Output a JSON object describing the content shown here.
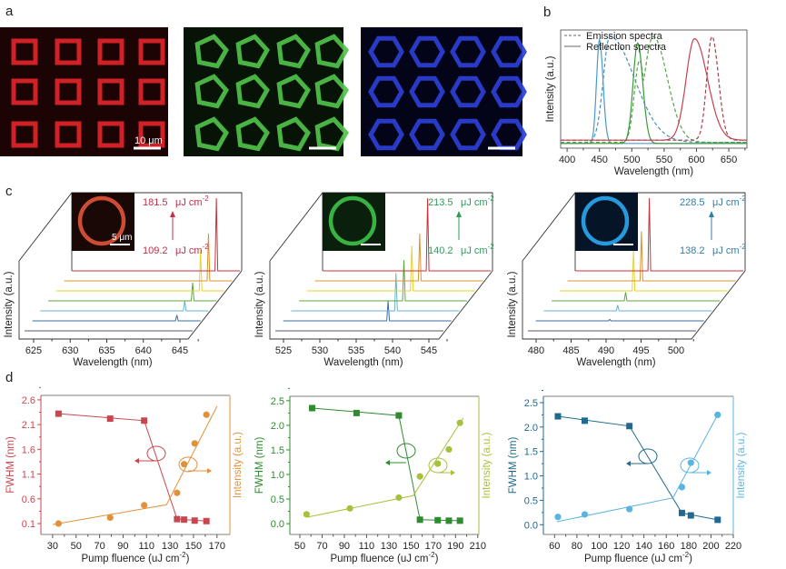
{
  "panel_labels": {
    "a": "a",
    "b": "b",
    "c": "c",
    "d": "d"
  },
  "panel_a": {
    "images": [
      {
        "name": "red-square-microring-array",
        "color": "#e0242a",
        "bg": "#1c0404",
        "shape": "square"
      },
      {
        "name": "green-pentagon-microring-array",
        "color": "#4fc24a",
        "bg": "#061306",
        "shape": "pentagon"
      },
      {
        "name": "blue-hexagon-microring-array",
        "color": "#2b3fd6",
        "bg": "#040418",
        "shape": "hexagon"
      }
    ],
    "scale_bar_label": "10 μm"
  },
  "chart_data": [
    {
      "id": "b",
      "type": "line",
      "title": "",
      "xlabel": "Wavelength (nm)",
      "ylabel": "Intensity (a.u.)",
      "xlim": [
        390,
        678
      ],
      "xticks": [
        400,
        450,
        500,
        550,
        600,
        650
      ],
      "legend": {
        "placement": "top-left",
        "entries": [
          {
            "label": "Emission spectra",
            "style": "dashed"
          },
          {
            "label": "Reflection spectra",
            "style": "solid"
          }
        ]
      },
      "series": [
        {
          "name": "blue emission",
          "style": "dashed",
          "color": "#4a8fb5",
          "peak_nm": 466,
          "sigma_left": 10,
          "sigma_right": 38,
          "height": 0.97,
          "baseline": 0.02
        },
        {
          "name": "blue reflection",
          "style": "solid",
          "color": "#4a9bc8",
          "peak_nm": 450,
          "sigma_left": 4.5,
          "sigma_right": 5.5,
          "height": 0.95,
          "baseline": 0.01
        },
        {
          "name": "green emission",
          "style": "dashed",
          "color": "#5aa34a",
          "peak_nm": 533,
          "sigma_left": 14,
          "sigma_right": 22,
          "height": 0.97,
          "shoulder_nm": 512,
          "shoulder_height": 0.75,
          "baseline": 0.02
        },
        {
          "name": "green reflection",
          "style": "solid",
          "color": "#3a9a3a",
          "peak_nm": 509,
          "sigma_left": 7,
          "sigma_right": 8,
          "height": 0.92,
          "baseline": 0.01
        },
        {
          "name": "red emission",
          "style": "dashed",
          "color": "#a8404a",
          "peak_nm": 624,
          "sigma_left": 8,
          "sigma_right": 10,
          "height": 0.95,
          "baseline": 0.04
        },
        {
          "name": "red reflection",
          "style": "solid",
          "color": "#c84050",
          "peak_nm": 597,
          "sigma_left": 13,
          "sigma_right": 20,
          "height": 0.93,
          "baseline": 0.04
        }
      ]
    },
    {
      "id": "c1",
      "type": "line",
      "subtype": "waterfall",
      "xlabel": "Wavelength (nm)",
      "ylabel": "Intensity (a.u.)",
      "xticks": [
        625,
        630,
        635,
        640,
        645
      ],
      "x_start": 625,
      "px_per_nm": 8.05,
      "peak_nm": 643.5,
      "peak_heights": [
        0,
        0.08,
        0.14,
        0.25,
        0.56,
        0.65,
        1.0
      ],
      "fluence_high": "181.5",
      "fluence_low": "109.2",
      "unit": "μJ cm",
      "unit_sup": "-2",
      "color": "#c0304a",
      "inset_ring": "#e0553a",
      "inset_bg": "#1a0806",
      "inset_scale": "5 μm"
    },
    {
      "id": "c2",
      "type": "line",
      "subtype": "waterfall",
      "xlabel": "Wavelength (nm)",
      "ylabel": "Intensity (a.u.)",
      "xticks": [
        525,
        530,
        535,
        540,
        545
      ],
      "x_start": 525,
      "px_per_nm": 8.0,
      "peak_nm": 538.3,
      "peak_heights": [
        0,
        0.27,
        0.52,
        0.56,
        0.62,
        0.65,
        1.0
      ],
      "fluence_high": "213.5",
      "fluence_low": "140.2",
      "unit": "μJ cm",
      "unit_sup": "-2",
      "color": "#2e9a5a",
      "inset_ring": "#3ec24a",
      "inset_bg": "#0a200c"
    },
    {
      "id": "c3",
      "type": "line",
      "subtype": "waterfall",
      "xlabel": "Wavelength (nm)",
      "ylabel": "Intensity (a.u.)",
      "xticks": [
        480,
        485,
        490,
        495,
        500
      ],
      "x_start": 480,
      "px_per_nm": 7.7,
      "peak_nm": 489.4,
      "peak_heights": [
        0,
        0.02,
        0.08,
        0.12,
        0.55,
        0.68,
        1.0
      ],
      "fluence_high": "228.5",
      "fluence_low": "138.2",
      "unit": "μJ cm",
      "unit_sup": "-2",
      "color": "#2f7fa8",
      "inset_ring": "#2aa8f0",
      "inset_bg": "#061428"
    },
    {
      "id": "d1",
      "type": "scatter",
      "xlabel": "Pump fluence (uJ cm",
      "xlabel_sup": "-2",
      "xlabel_end": ")",
      "ylabel_left": "FWHM (nm)",
      "ylabel_right": "Intensity (a.u.)",
      "xlim": [
        20,
        181
      ],
      "ylim": [
        -0.12,
        2.69
      ],
      "xticks": [
        30,
        50,
        70,
        90,
        110,
        130,
        150,
        170
      ],
      "yticks": [
        "0.1",
        "0.6",
        "1.1",
        "1.6",
        "2.1",
        "2.6"
      ],
      "color_left": "#c8474f",
      "color_right": "#e0913a",
      "fwhm": {
        "x": [
          35,
          79,
          108,
          136,
          142,
          151,
          161
        ],
        "y": [
          2.32,
          2.22,
          2.18,
          0.19,
          0.18,
          0.16,
          0.15
        ]
      },
      "intensity": {
        "x": [
          35,
          79,
          108,
          136,
          142,
          151,
          161
        ],
        "y": [
          0.1,
          0.22,
          0.47,
          0.72,
          1.3,
          1.72,
          2.3
        ]
      },
      "fwhm_fit": {
        "x": [
          35,
          108,
          136,
          161
        ],
        "y": [
          2.32,
          2.18,
          0.19,
          0.15
        ]
      },
      "intensity_fit": {
        "x": [
          30,
          127,
          170
        ],
        "y": [
          0.08,
          0.48,
          2.47
        ]
      }
    },
    {
      "id": "d2",
      "type": "scatter",
      "xlabel": "Pump fluence (uJ cm",
      "xlabel_sup": "-2",
      "xlabel_end": ")",
      "ylabel_left": "FWHM (nm)",
      "ylabel_right": "Intensity (a.u.)",
      "xlim": [
        41,
        211
      ],
      "ylim": [
        -0.22,
        2.59
      ],
      "xticks": [
        50,
        70,
        90,
        110,
        130,
        150,
        170,
        190,
        210
      ],
      "yticks": [
        "0.0",
        "0.5",
        "1.0",
        "1.5",
        "2.0",
        "2.5"
      ],
      "color_left": "#2e8b2e",
      "color_right": "#a6c13c",
      "fwhm": {
        "x": [
          61,
          101,
          139,
          158,
          174,
          184,
          194
        ],
        "y": [
          2.35,
          2.25,
          2.2,
          0.08,
          0.07,
          0.06,
          0.06
        ]
      },
      "intensity": {
        "x": [
          56,
          95,
          139,
          158,
          174,
          184,
          194
        ],
        "y": [
          0.19,
          0.31,
          0.53,
          0.96,
          1.22,
          1.51,
          2.05
        ]
      },
      "fwhm_fit": {
        "x": [
          61,
          139,
          158,
          194
        ],
        "y": [
          2.35,
          2.2,
          0.08,
          0.06
        ]
      },
      "intensity_fit": {
        "x": [
          56,
          152,
          197
        ],
        "y": [
          0.13,
          0.57,
          2.15
        ]
      }
    },
    {
      "id": "d3",
      "type": "scatter",
      "xlabel": "Pump fluence (uJ cm",
      "xlabel_sup": "-2",
      "xlabel_end": ")",
      "ylabel_left": "FWHM (nm)",
      "ylabel_right": "Intensity (a.u.)",
      "xlim": [
        50,
        220
      ],
      "ylim": [
        -0.2,
        2.63
      ],
      "xticks": [
        60,
        80,
        100,
        120,
        140,
        160,
        180,
        200,
        220
      ],
      "yticks": [
        "0.0",
        "0.5",
        "1.0",
        "1.5",
        "2.0",
        "2.5"
      ],
      "color_left": "#1f6a8e",
      "color_right": "#5ab4e0",
      "fwhm": {
        "x": [
          63,
          87,
          127,
          174,
          182,
          206
        ],
        "y": [
          2.22,
          2.13,
          2.02,
          0.24,
          0.19,
          0.1
        ]
      },
      "intensity": {
        "x": [
          63,
          87,
          127,
          174,
          182,
          206
        ],
        "y": [
          0.16,
          0.21,
          0.32,
          0.77,
          1.27,
          2.25
        ]
      },
      "fwhm_fit": {
        "x": [
          63,
          127,
          174,
          206
        ],
        "y": [
          2.22,
          2.02,
          0.24,
          0.1
        ]
      },
      "intensity_fit": {
        "x": [
          62,
          166,
          206
        ],
        "y": [
          0.06,
          0.55,
          2.25
        ]
      }
    }
  ],
  "trace_colors": [
    "#555a66",
    "#3a6ea0",
    "#6ab2cc",
    "#5aa83c",
    "#e6d22e",
    "#d9932e",
    "#c8323c"
  ]
}
